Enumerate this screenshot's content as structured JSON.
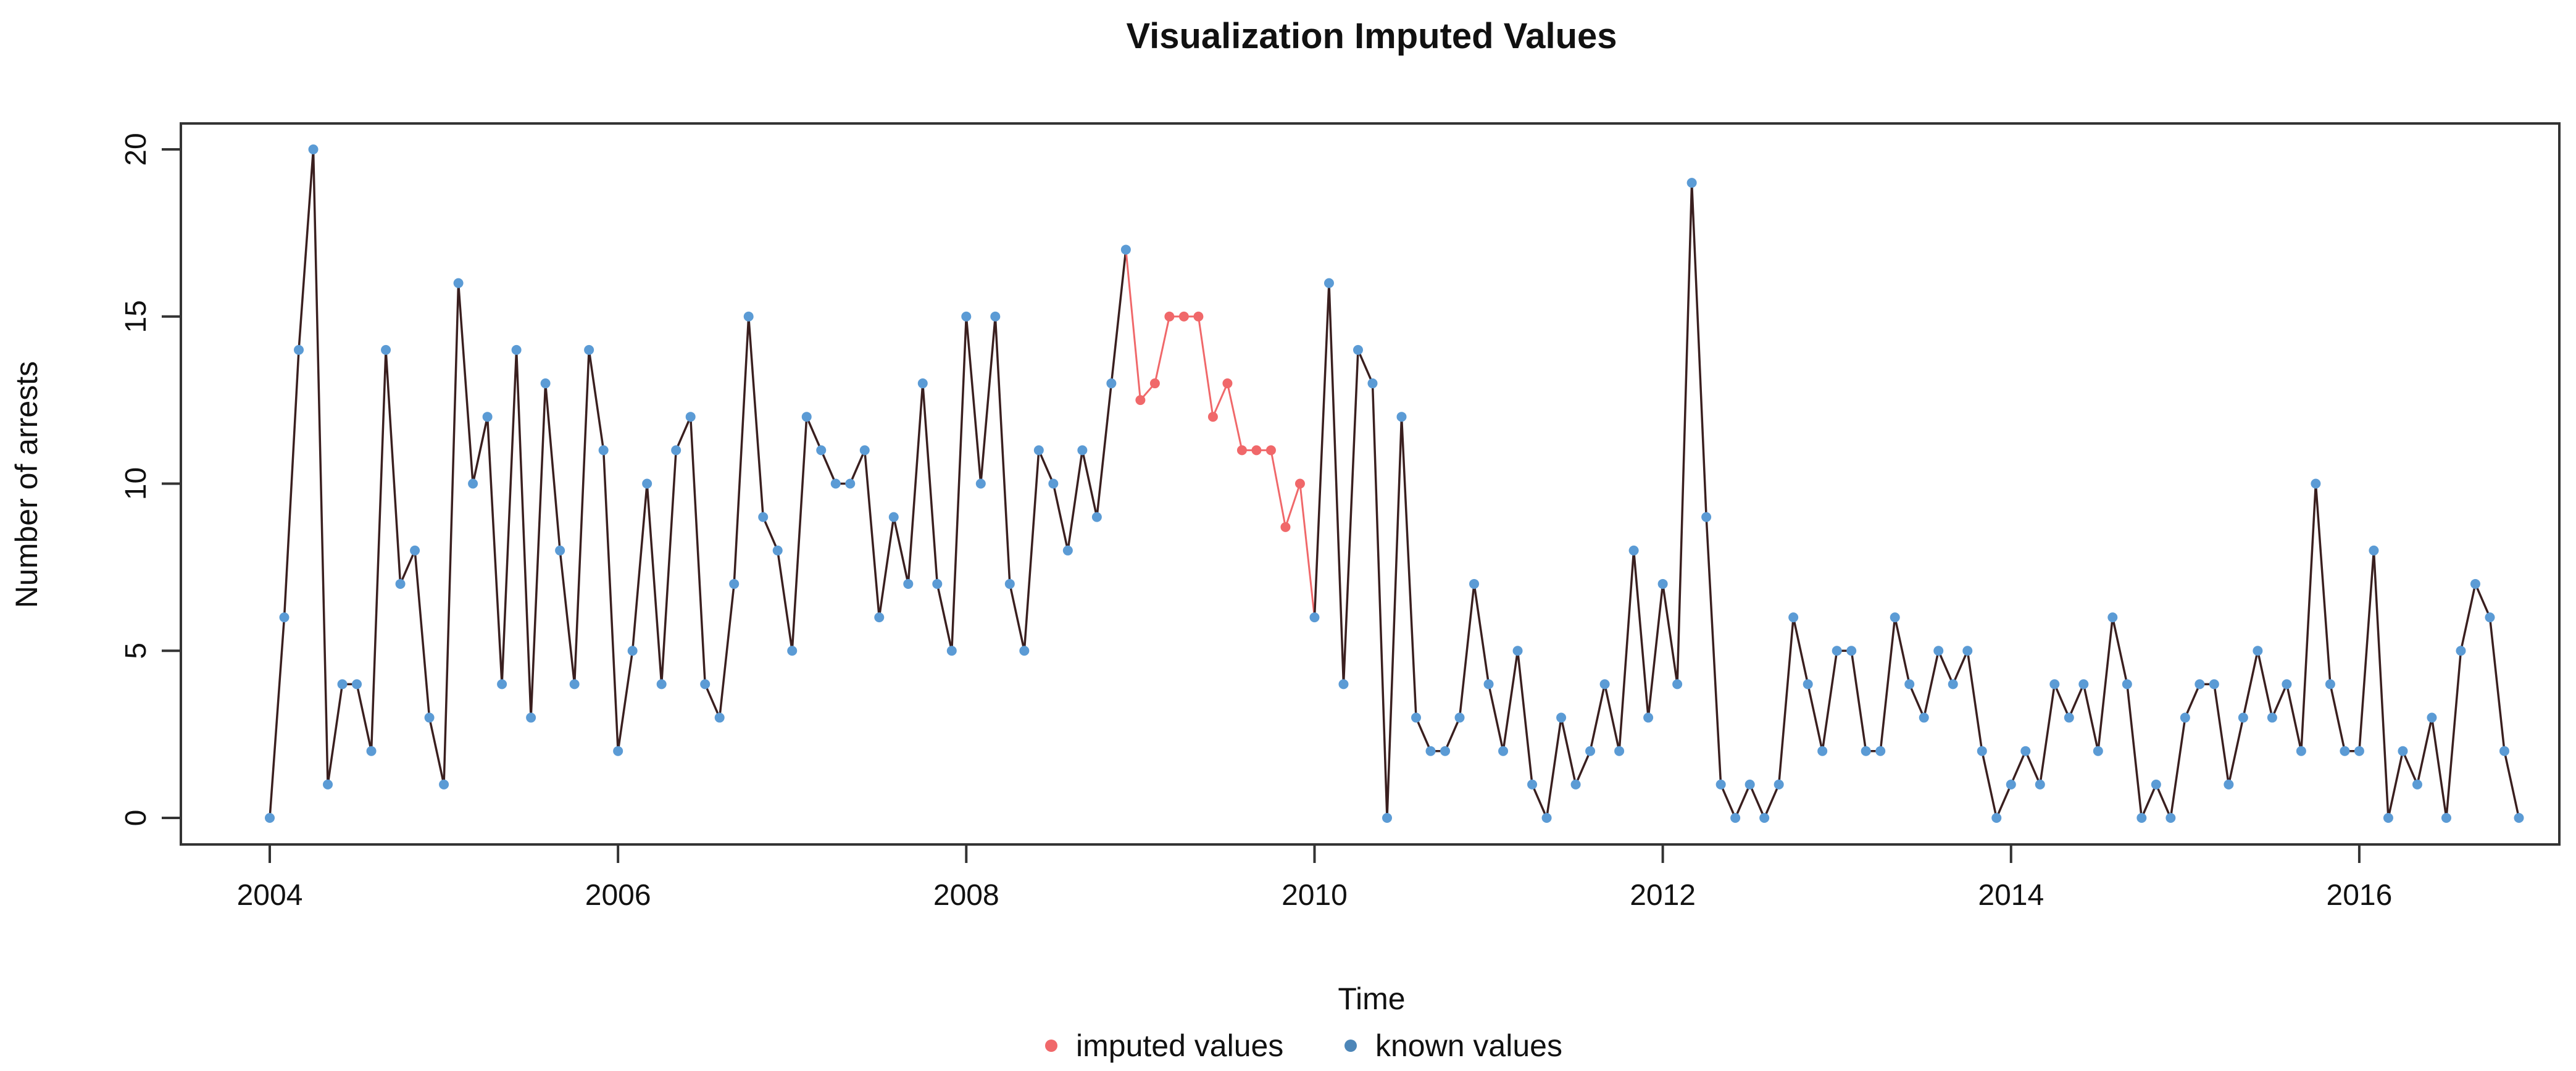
{
  "chart_data": {
    "type": "line",
    "title": "Visualization Imputed Values",
    "xlabel": "Time",
    "ylabel": "Number of arrests",
    "xlim": [
      2004,
      2017
    ],
    "ylim": [
      0,
      20
    ],
    "x_ticks": [
      "2004",
      "2006",
      "2008",
      "2010",
      "2012",
      "2014",
      "2016"
    ],
    "y_ticks": [
      "0",
      "5",
      "10",
      "15",
      "20"
    ],
    "start": 2004,
    "frequency": 12,
    "values": [
      0,
      6,
      14,
      20,
      1,
      4,
      4,
      2,
      14,
      7,
      8,
      3,
      1,
      16,
      10,
      12,
      4,
      14,
      3,
      13,
      8,
      4,
      14,
      11,
      2,
      5,
      10,
      4,
      11,
      12,
      4,
      3,
      7,
      15,
      9,
      8,
      5,
      12,
      11,
      10,
      10,
      11,
      6,
      9,
      7,
      13,
      7,
      5,
      15,
      10,
      15,
      7,
      5,
      11,
      10,
      8,
      11,
      9,
      13,
      17,
      12.5,
      13,
      15,
      15,
      15,
      12,
      13,
      11,
      11,
      11,
      8.7,
      10,
      6,
      16,
      4,
      14,
      13,
      0,
      12,
      3,
      2,
      2,
      3,
      7,
      4,
      2,
      5,
      1,
      0,
      3,
      1,
      2,
      4,
      2,
      8,
      3,
      7,
      4,
      19,
      9,
      1,
      0,
      1,
      0,
      1,
      6,
      4,
      2,
      5,
      5,
      2,
      2,
      6,
      4,
      3,
      5,
      4,
      5,
      2,
      0,
      1,
      2,
      1,
      4,
      3,
      4,
      2,
      6,
      4,
      0,
      1,
      0,
      3,
      4,
      4,
      1,
      3,
      5,
      3,
      4,
      2,
      10,
      4,
      2,
      2,
      8,
      0,
      2,
      1,
      3,
      0,
      5,
      7,
      6,
      2,
      0
    ],
    "imputed_indices": [
      60,
      61,
      62,
      63,
      64,
      65,
      66,
      67,
      68,
      69,
      70,
      71
    ],
    "series": [
      {
        "name": "known values",
        "color": "#5b9bd5",
        "line_color": "#3a1f1f"
      },
      {
        "name": "imputed values",
        "color": "#f0686a",
        "line_color": "#f0686a"
      }
    ],
    "legend": {
      "position": "bottom-center",
      "items": [
        {
          "label": "imputed values",
          "color": "#f0686a"
        },
        {
          "label": "known values",
          "color": "#4d86b8"
        }
      ]
    }
  }
}
